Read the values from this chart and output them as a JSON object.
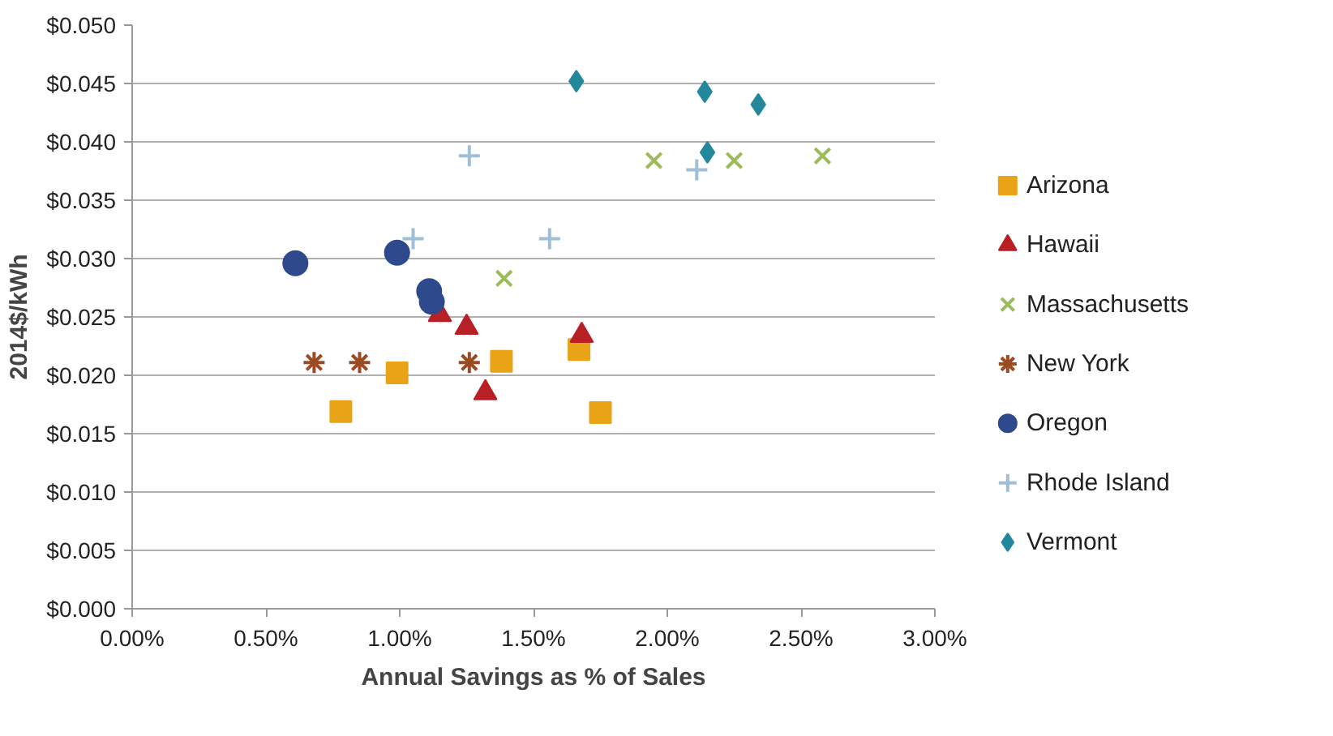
{
  "chart_data": {
    "type": "scatter",
    "xlabel": "Annual Savings as % of Sales",
    "ylabel": "2014$/kWh",
    "xlim": [
      0,
      3
    ],
    "xticks": [
      {
        "value": 0,
        "label": "0.00%"
      },
      {
        "value": 0.5,
        "label": "0.50%"
      },
      {
        "value": 1,
        "label": "1.00%"
      },
      {
        "value": 1.5,
        "label": "1.50%"
      },
      {
        "value": 2,
        "label": "2.00%"
      },
      {
        "value": 2.5,
        "label": "2.50%"
      },
      {
        "value": 3,
        "label": "3.00%"
      }
    ],
    "ylim": [
      0,
      0.05
    ],
    "yticks": [
      {
        "value": 0,
        "label": "$0.000"
      },
      {
        "value": 0.005,
        "label": "$0.005"
      },
      {
        "value": 0.01,
        "label": "$0.010"
      },
      {
        "value": 0.015,
        "label": "$0.015"
      },
      {
        "value": 0.02,
        "label": "$0.020"
      },
      {
        "value": 0.025,
        "label": "$0.025"
      },
      {
        "value": 0.03,
        "label": "$0.030"
      },
      {
        "value": 0.035,
        "label": "$0.035"
      },
      {
        "value": 0.04,
        "label": "$0.040"
      },
      {
        "value": 0.045,
        "label": "$0.045"
      },
      {
        "value": 0.05,
        "label": "$0.050"
      }
    ],
    "grid": "y",
    "legend": "right",
    "series": [
      {
        "name": "Arizona",
        "color": "#e8a317",
        "marker": "square",
        "x": [
          0.78,
          0.99,
          1.38,
          1.67,
          1.75
        ],
        "values": [
          0.0169,
          0.0202,
          0.0212,
          0.0222,
          0.0168
        ]
      },
      {
        "name": "Hawaii",
        "color": "#b82025",
        "marker": "triangle",
        "x": [
          1.15,
          1.25,
          1.32,
          1.68
        ],
        "values": [
          0.0252,
          0.0241,
          0.0185,
          0.0234
        ]
      },
      {
        "name": "Massachusetts",
        "color": "#9bbb59",
        "marker": "x",
        "x": [
          1.39,
          1.95,
          2.25,
          2.58
        ],
        "values": [
          0.0283,
          0.0384,
          0.0384,
          0.0388
        ]
      },
      {
        "name": "New York",
        "color": "#9c4a22",
        "x": [
          0.68,
          0.85,
          1.26
        ],
        "values": [
          0.0211,
          0.0211,
          0.0211
        ]
      },
      {
        "name": "Oregon",
        "color": "#2e4a8c",
        "marker": "circle",
        "x": [
          0.61,
          0.99,
          1.11,
          1.12
        ],
        "values": [
          0.0296,
          0.0305,
          0.0272,
          0.0263
        ]
      },
      {
        "name": "Rhode Island",
        "color": "#9fbfd6",
        "marker": "cross",
        "x": [
          1.05,
          1.26,
          1.56,
          2.11
        ],
        "values": [
          0.0317,
          0.0388,
          0.0317,
          0.0376
        ]
      },
      {
        "name": "Vermont",
        "color": "#23889c",
        "marker": "diamond",
        "x": [
          1.66,
          2.14,
          2.34,
          2.15
        ],
        "values": [
          0.0452,
          0.0443,
          0.0432,
          0.0391
        ]
      }
    ]
  }
}
